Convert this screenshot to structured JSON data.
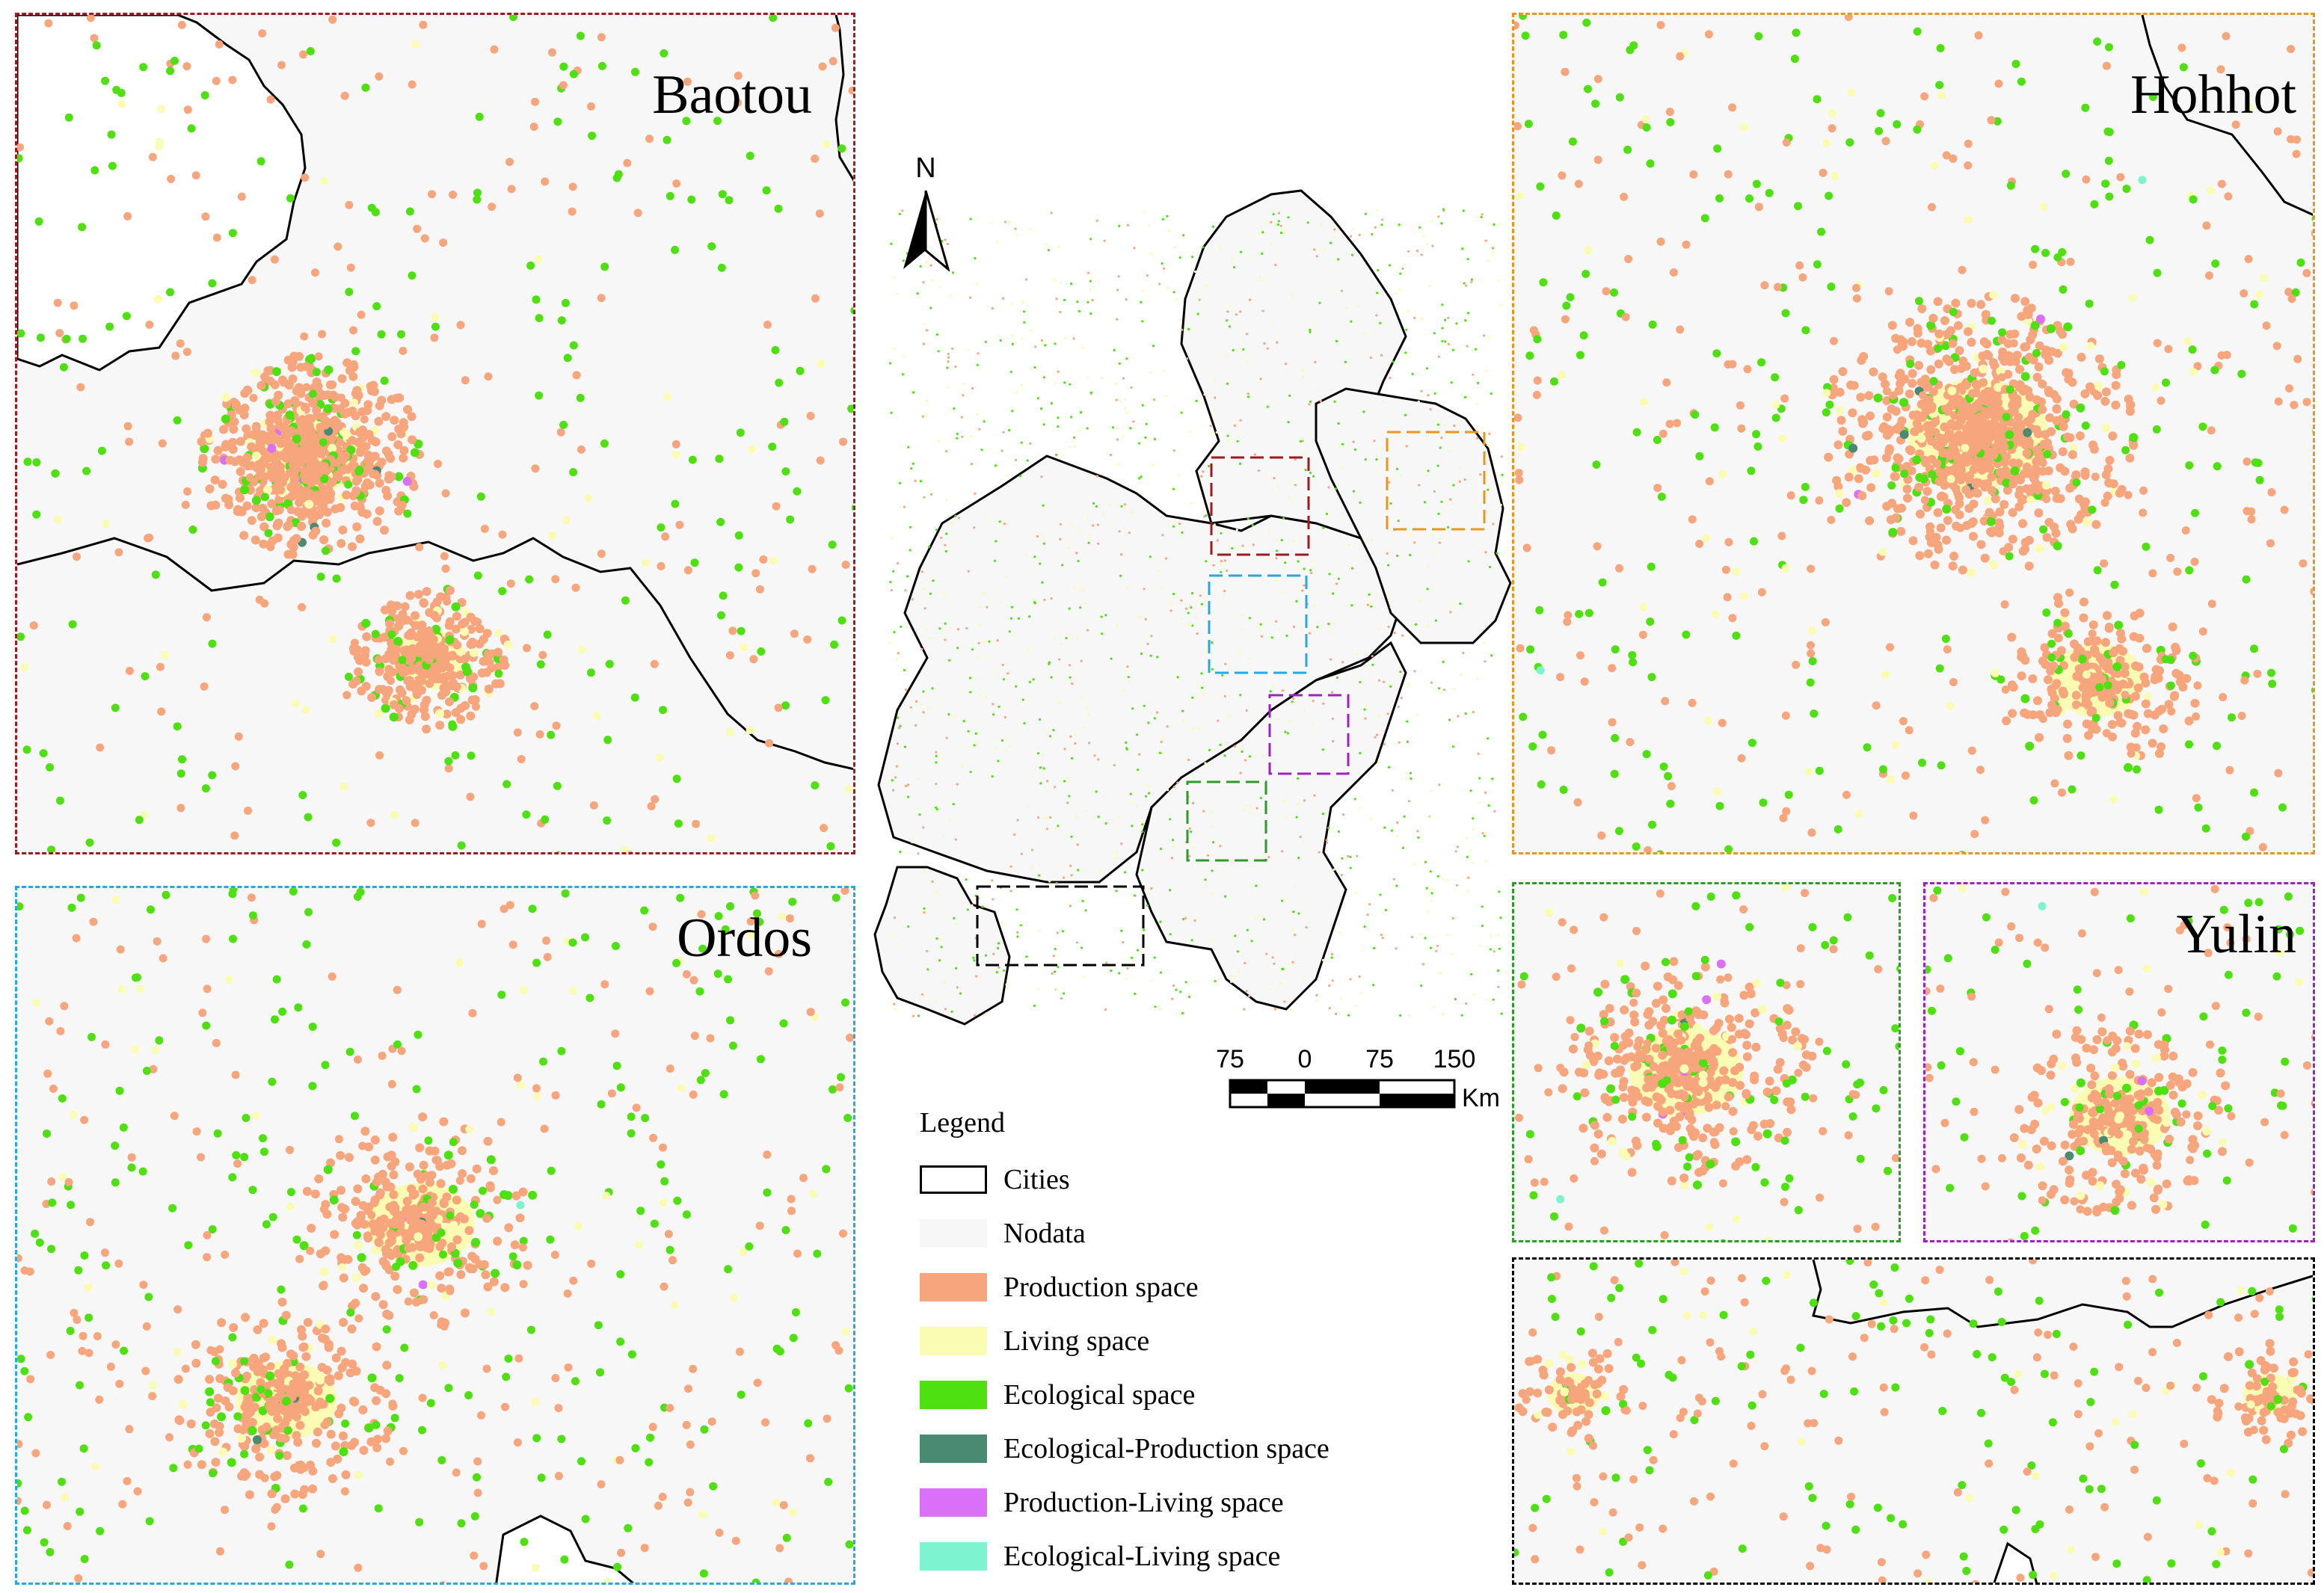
{
  "panels": {
    "baotou": {
      "label": "Baotou",
      "border_color": "#a01820"
    },
    "hohhot": {
      "label": "Hohhot",
      "border_color": "#e8961e"
    },
    "ordos": {
      "label": "Ordos",
      "border_color": "#29a8e0"
    },
    "yulin": {
      "label": "Yulin",
      "border_color": "#a020c8"
    },
    "yulin_green_inset": {
      "label": "",
      "border_color": "#2e9a28"
    },
    "yulin_black_inset": {
      "label": "",
      "border_color": "#000000"
    }
  },
  "north_arrow": {
    "label": "N"
  },
  "scale_bar": {
    "ticks": [
      "75",
      "0",
      "75",
      "150"
    ],
    "unit": "Km"
  },
  "legend": {
    "title": "Legend",
    "items": [
      {
        "label": "Cities",
        "color": "#ffffff",
        "outline": "#000000"
      },
      {
        "label": "Nodata",
        "color": "#f7f7f7"
      },
      {
        "label": "Production space",
        "color": "#f7a57c"
      },
      {
        "label": "Living space",
        "color": "#fbfcb4"
      },
      {
        "label": "Ecological space",
        "color": "#4ee011"
      },
      {
        "label": "Ecological-Production space",
        "color": "#4a8a72"
      },
      {
        "label": "Production-Living space",
        "color": "#da70f5"
      },
      {
        "label": "Ecological-Living space",
        "color": "#7df3cf"
      }
    ]
  }
}
